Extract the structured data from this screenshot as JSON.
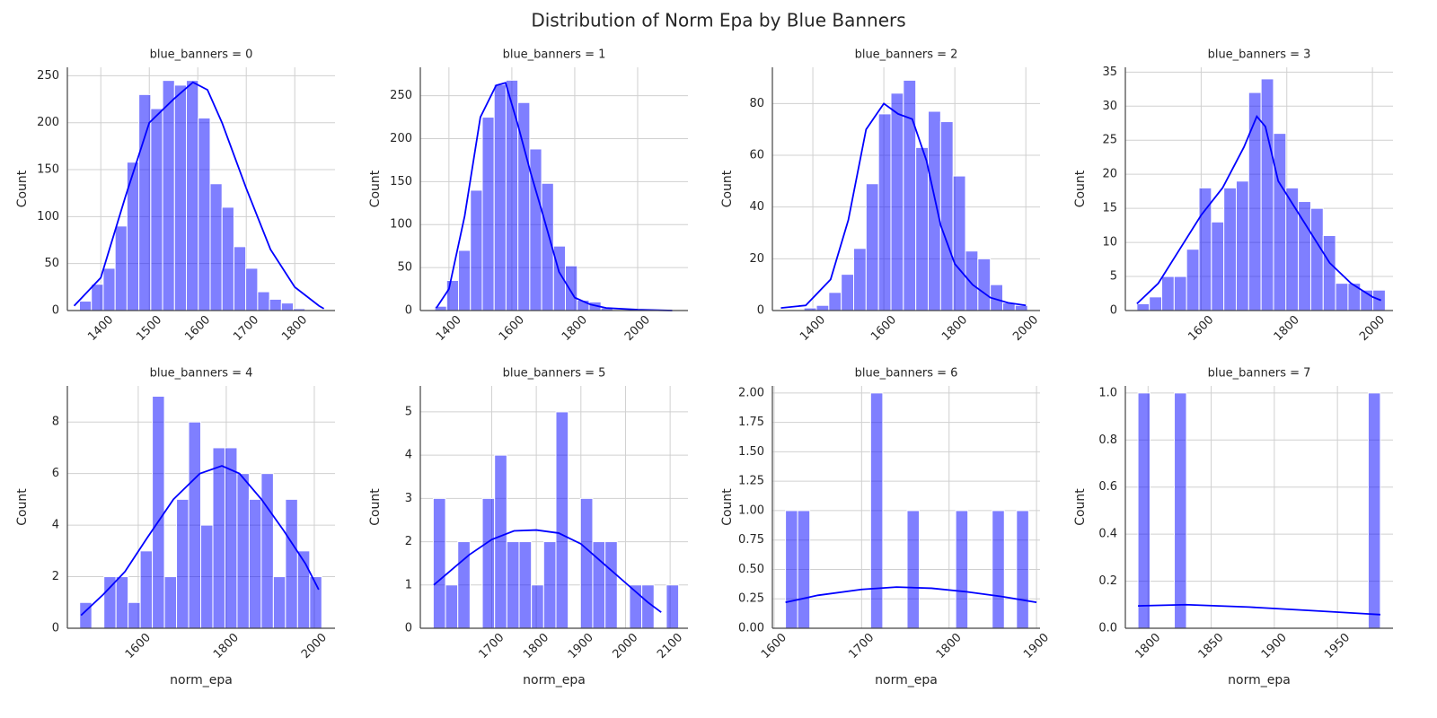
{
  "title": "Distribution of Norm Epa by Blue Banners",
  "chart_data": [
    {
      "type": "histogram",
      "title": "blue_banners = 0",
      "ylabel": "Count",
      "color": "#0000ff",
      "grid": true,
      "bins": [
        1356,
        1380.5,
        1405,
        1429.5,
        1454,
        1478.5,
        1503,
        1527.5,
        1552,
        1576.5,
        1601,
        1625.5,
        1650,
        1674.5,
        1699,
        1723.5,
        1748,
        1772.5,
        1797,
        1821.5,
        1846
      ],
      "values": [
        10,
        28,
        45,
        90,
        158,
        230,
        215,
        245,
        240,
        245,
        205,
        135,
        110,
        68,
        45,
        20,
        12,
        8,
        2,
        1
      ],
      "kde": {
        "x": [
          1345,
          1400,
          1450,
          1500,
          1550,
          1590,
          1620,
          1650,
          1700,
          1750,
          1800,
          1850,
          1860
        ],
        "values": [
          5,
          35,
          120,
          200,
          225,
          243,
          235,
          200,
          130,
          65,
          25,
          5,
          2
        ]
      },
      "xlim": [
        1331,
        1883
      ],
      "ylim": [
        0,
        259
      ],
      "xticks": [
        1400,
        1500,
        1600,
        1700,
        1800
      ],
      "yticks": [
        0,
        50,
        100,
        150,
        200,
        250
      ]
    },
    {
      "type": "histogram",
      "title": "blue_banners = 1",
      "ylabel": "Count",
      "color": "#0000ff",
      "grid": true,
      "bins": [
        1355,
        1392.75,
        1430.5,
        1468.25,
        1506,
        1543.75,
        1581.5,
        1619.25,
        1657,
        1694.75,
        1732.5,
        1770.25,
        1808,
        1845.75,
        1883.5,
        1921.25,
        1959,
        1996.75,
        2034.5,
        2072.25,
        2110
      ],
      "values": [
        5,
        35,
        70,
        140,
        225,
        263,
        268,
        242,
        188,
        148,
        75,
        52,
        12,
        10,
        3,
        1,
        0,
        0,
        0,
        1
      ],
      "kde": {
        "x": [
          1360,
          1400,
          1450,
          1500,
          1550,
          1580,
          1620,
          1660,
          1700,
          1750,
          1800,
          1850,
          1900,
          2000,
          2110
        ],
        "values": [
          3,
          25,
          110,
          225,
          262,
          265,
          215,
          160,
          110,
          45,
          15,
          7,
          3,
          1,
          0
        ]
      },
      "xlim": [
        1309,
        2160
      ],
      "ylim": [
        0,
        283
      ],
      "xticks": [
        1400,
        1600,
        1800,
        2000
      ],
      "yticks": [
        0,
        50,
        100,
        150,
        200,
        250
      ]
    },
    {
      "type": "histogram",
      "title": "blue_banners = 2",
      "ylabel": "Count",
      "color": "#0000ff",
      "grid": true,
      "bins": [
        1375,
        1410,
        1445,
        1480,
        1515,
        1550,
        1585,
        1620,
        1655,
        1690,
        1725,
        1760,
        1795,
        1830,
        1865,
        1900,
        1935,
        1970,
        2005
      ],
      "values": [
        1,
        2,
        7,
        14,
        24,
        49,
        76,
        84,
        89,
        63,
        77,
        73,
        52,
        23,
        20,
        10,
        3,
        2
      ],
      "kde": {
        "x": [
          1310,
          1380,
          1450,
          1500,
          1550,
          1600,
          1640,
          1680,
          1720,
          1760,
          1800,
          1850,
          1900,
          1950,
          2000
        ],
        "values": [
          1,
          2,
          12,
          35,
          70,
          80,
          76,
          74,
          58,
          33,
          18,
          10,
          5,
          3,
          2
        ]
      },
      "xlim": [
        1286,
        2040
      ],
      "ylim": [
        0,
        94
      ],
      "xticks": [
        1400,
        1600,
        1800,
        2000
      ],
      "yticks": [
        0,
        20,
        40,
        60,
        80
      ]
    },
    {
      "type": "histogram",
      "title": "blue_banners = 3",
      "ylabel": "Count",
      "color": "#0000ff",
      "grid": true,
      "bins": [
        1450,
        1479,
        1508,
        1537,
        1566,
        1595,
        1624,
        1653,
        1682,
        1711,
        1740,
        1769,
        1798,
        1827,
        1856,
        1885,
        1914,
        1943,
        1972,
        2001,
        2030
      ],
      "values": [
        1,
        2,
        5,
        5,
        9,
        18,
        13,
        18,
        19,
        32,
        34,
        26,
        18,
        16,
        15,
        11,
        4,
        4,
        3,
        3
      ],
      "kde": {
        "x": [
          1450,
          1500,
          1550,
          1600,
          1650,
          1700,
          1730,
          1750,
          1780,
          1820,
          1850,
          1900,
          1950,
          2000,
          2020
        ],
        "values": [
          1,
          4,
          9,
          14,
          18,
          24,
          28.5,
          27,
          19,
          15,
          12,
          7,
          4,
          2,
          1.5
        ]
      },
      "xlim": [
        1423,
        2048
      ],
      "ylim": [
        0,
        35.7
      ],
      "xticks": [
        1600,
        1800,
        2000
      ],
      "yticks": [
        0,
        5,
        10,
        15,
        20,
        25,
        30,
        35
      ]
    },
    {
      "type": "histogram",
      "title": "blue_banners = 4",
      "xlabel": "norm_epa",
      "ylabel": "Count",
      "color": "#0000ff",
      "grid": true,
      "bins": [
        1467,
        1494.5,
        1522,
        1549.5,
        1577,
        1604.5,
        1632,
        1659.5,
        1687,
        1714.5,
        1742,
        1769.5,
        1797,
        1824.5,
        1852,
        1879.5,
        1907,
        1934.5,
        1962,
        1989.5,
        2017
      ],
      "values": [
        1,
        0,
        2,
        2,
        1,
        3,
        9,
        2,
        5,
        8,
        4,
        7,
        7,
        6,
        5,
        6,
        2,
        5,
        3,
        2
      ],
      "kde": {
        "x": [
          1470,
          1520,
          1570,
          1620,
          1680,
          1740,
          1790,
          1830,
          1880,
          1930,
          1980,
          2010
        ],
        "values": [
          0.5,
          1.3,
          2.2,
          3.5,
          5,
          6,
          6.3,
          6,
          5,
          3.8,
          2.5,
          1.5
        ]
      },
      "xlim": [
        1439,
        2047
      ],
      "ylim": [
        0,
        9.4
      ],
      "xticks": [
        1600,
        1800,
        2000
      ],
      "yticks": [
        0,
        2,
        4,
        6,
        8
      ]
    },
    {
      "type": "histogram",
      "title": "blue_banners = 5",
      "xlabel": "norm_epa",
      "ylabel": "Count",
      "color": "#0000ff",
      "grid": true,
      "bins": [
        1569,
        1596.5,
        1624,
        1651.5,
        1679,
        1706.5,
        1734,
        1761.5,
        1789,
        1816.5,
        1844,
        1871.5,
        1899,
        1926.5,
        1954,
        1981.5,
        2009,
        2036.5,
        2064,
        2091.5,
        2119
      ],
      "values": [
        3,
        1,
        2,
        0,
        3,
        4,
        2,
        2,
        1,
        2,
        5,
        0,
        3,
        2,
        2,
        0,
        1,
        1,
        0,
        1
      ],
      "kde": {
        "x": [
          1570,
          1650,
          1700,
          1750,
          1800,
          1850,
          1900,
          1950,
          2000,
          2050,
          2080
        ],
        "values": [
          1,
          1.7,
          2.05,
          2.25,
          2.27,
          2.2,
          1.95,
          1.5,
          1.05,
          0.6,
          0.37
        ]
      },
      "xlim": [
        1540,
        2140
      ],
      "ylim": [
        0,
        5.6
      ],
      "xticks": [
        1700,
        1800,
        1900,
        2000,
        2100
      ],
      "yticks": [
        0,
        1,
        2,
        3,
        4,
        5
      ]
    },
    {
      "type": "histogram",
      "title": "blue_banners = 6",
      "xlabel": "norm_epa",
      "ylabel": "Count",
      "color": "#0000ff",
      "grid": true,
      "bins": [
        1613,
        1626.9,
        1640.8,
        1654.7,
        1668.6,
        1682.5,
        1696.4,
        1710.3,
        1724.2,
        1738.1,
        1752,
        1765.9,
        1779.8,
        1793.7,
        1807.6,
        1821.5,
        1835.4,
        1849.3,
        1863.2,
        1877.1,
        1891
      ],
      "values": [
        1,
        1,
        0,
        0,
        0,
        0,
        0,
        2,
        0,
        0,
        1,
        0,
        0,
        0,
        1,
        0,
        0,
        1,
        0,
        1
      ],
      "kde": {
        "x": [
          1613,
          1650,
          1700,
          1740,
          1780,
          1820,
          1860,
          1900
        ],
        "values": [
          0.22,
          0.28,
          0.33,
          0.35,
          0.34,
          0.31,
          0.27,
          0.22
        ]
      },
      "xlim": [
        1598,
        1904
      ],
      "ylim": [
        0,
        2.06
      ],
      "xticks": [
        1600,
        1700,
        1800,
        1900
      ],
      "yticks": [
        {
          "value": 0,
          "label": "0.00"
        },
        0.25,
        {
          "value": 0.5,
          "label": "0.50"
        },
        0.75,
        {
          "value": 1,
          "label": "1.00"
        },
        1.25,
        {
          "value": 1.5,
          "label": "1.50"
        },
        1.75,
        {
          "value": 2,
          "label": "2.00"
        }
      ]
    },
    {
      "type": "histogram",
      "title": "blue_banners = 7",
      "xlabel": "norm_epa",
      "ylabel": "Count",
      "color": "#0000ff",
      "grid": true,
      "bins": [
        1792,
        1801.6,
        1811.2,
        1820.8,
        1830.4,
        1840,
        1849.6,
        1859.2,
        1868.8,
        1878.4,
        1888,
        1897.6,
        1907.2,
        1916.8,
        1926.4,
        1936,
        1945.6,
        1955.2,
        1964.8,
        1974.4,
        1984
      ],
      "values": [
        1,
        0,
        0,
        1,
        0,
        0,
        0,
        0,
        0,
        0,
        0,
        0,
        0,
        0,
        0,
        0,
        0,
        0,
        0,
        1
      ],
      "kde": {
        "x": [
          1792,
          1830,
          1880,
          1930,
          1984
        ],
        "values": [
          0.095,
          0.1,
          0.09,
          0.075,
          0.058
        ]
      },
      "xlim": [
        1782,
        1994
      ],
      "ylim": [
        0,
        1.03
      ],
      "xticks": [
        1800,
        1850,
        1900,
        1950
      ],
      "yticks": [
        {
          "value": 0,
          "label": "0.0"
        },
        0.2,
        0.4,
        0.6,
        0.8,
        {
          "value": 1,
          "label": "1.0"
        }
      ]
    }
  ]
}
